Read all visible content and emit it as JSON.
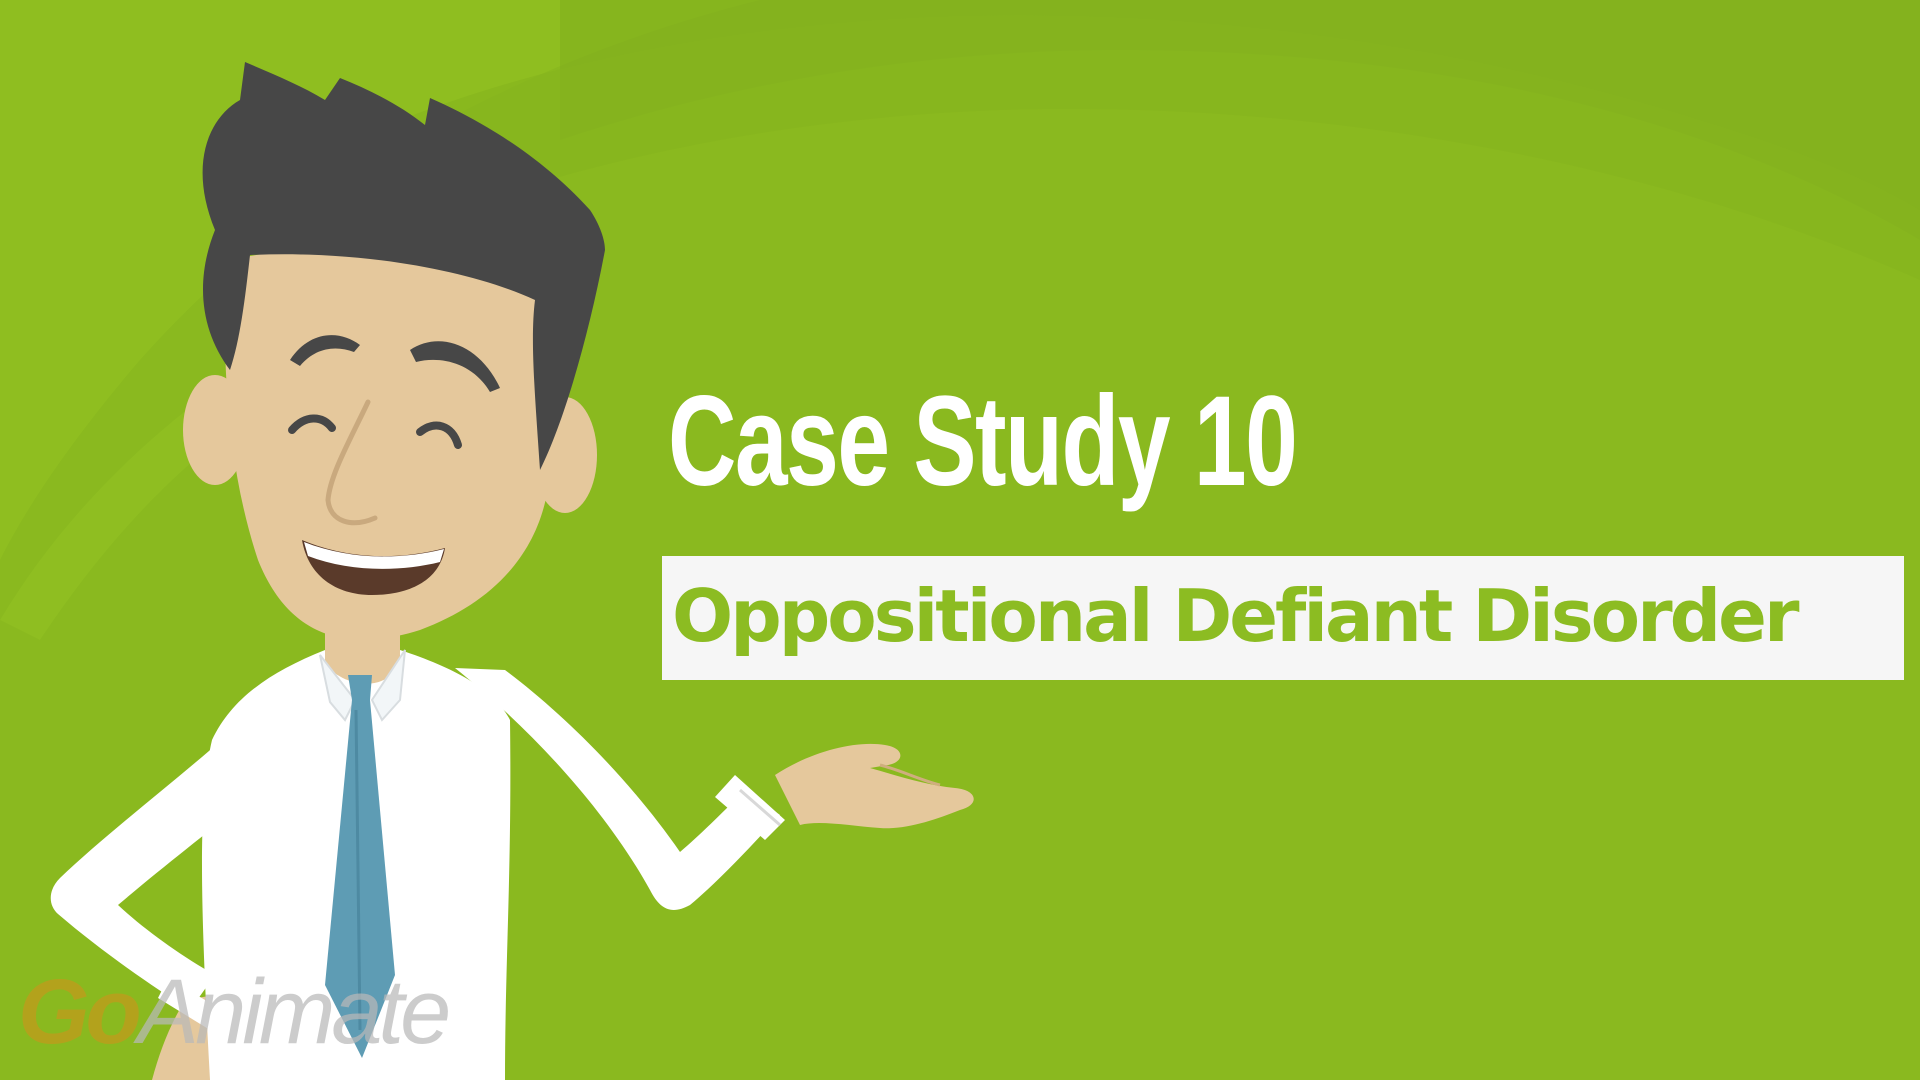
{
  "scene": {
    "title": "Case Study 10",
    "subtitle": "Oppositional Defiant Disorder",
    "watermark": {
      "part1": "Go",
      "part2": "Animate"
    }
  },
  "colors": {
    "background": "#8ab91f",
    "title_text": "#ffffff",
    "subtitle_text": "#8cbc22",
    "subtitle_box": "#f6f6f6",
    "hair": "#474747",
    "skin": "#e5c89c",
    "shirt": "#ffffff",
    "tie": "#5e9cb4"
  },
  "icons": [
    "presenter-character-illustration",
    "goanimate-logo"
  ]
}
